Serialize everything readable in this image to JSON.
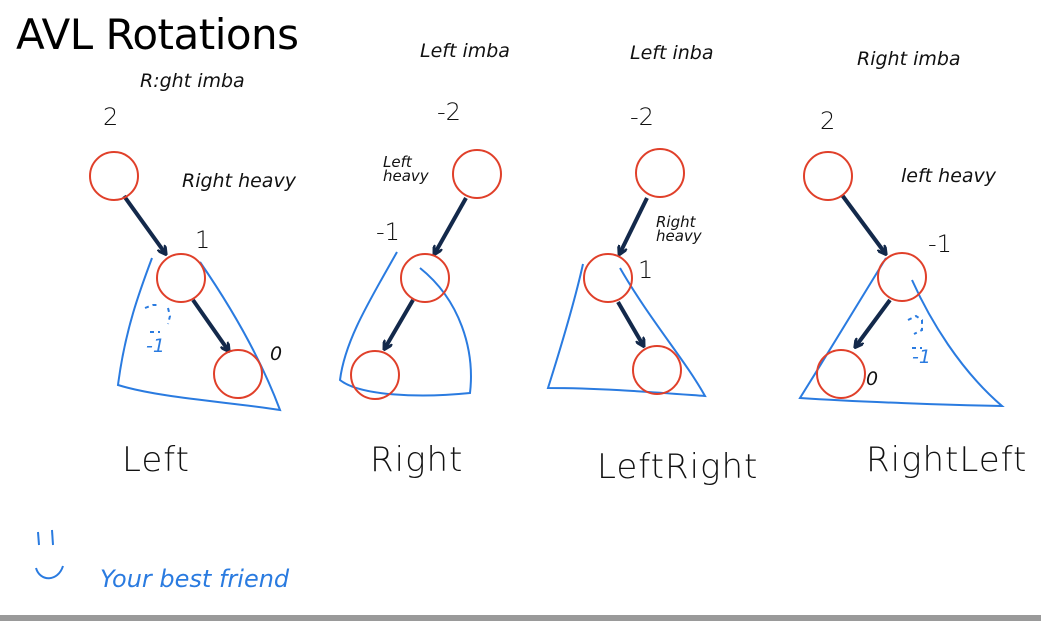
{
  "title": "AVL Rotations",
  "colors": {
    "node": "#e0402a",
    "arrow": "#13294b",
    "ink_blue": "#2a7be0",
    "ink": "#111111"
  },
  "panels": [
    {
      "id": "left",
      "imbalance": "R:ght imba",
      "root_balance": "2",
      "heavy_note": "Right heavy",
      "child_balance": "1",
      "grandchild_balance": "0",
      "subtree_label": "-1",
      "rotation": "Left"
    },
    {
      "id": "right",
      "imbalance": "Left imba",
      "root_balance": "-2",
      "heavy_note": "Left heavy",
      "child_balance": "-1",
      "rotation": "Right"
    },
    {
      "id": "leftright",
      "imbalance": "Left inba",
      "root_balance": "-2",
      "heavy_note": "Right heavy",
      "child_balance": "1",
      "rotation": "LeftRight"
    },
    {
      "id": "rightleft",
      "imbalance": "Right imba",
      "root_balance": "2",
      "heavy_note": "left heavy",
      "child_balance": "-1",
      "grandchild_balance": "0",
      "subtree_label": "-1",
      "rotation": "RightLeft"
    }
  ],
  "footnote": "Your best friend",
  "footnote_icon": "smiley-icon"
}
